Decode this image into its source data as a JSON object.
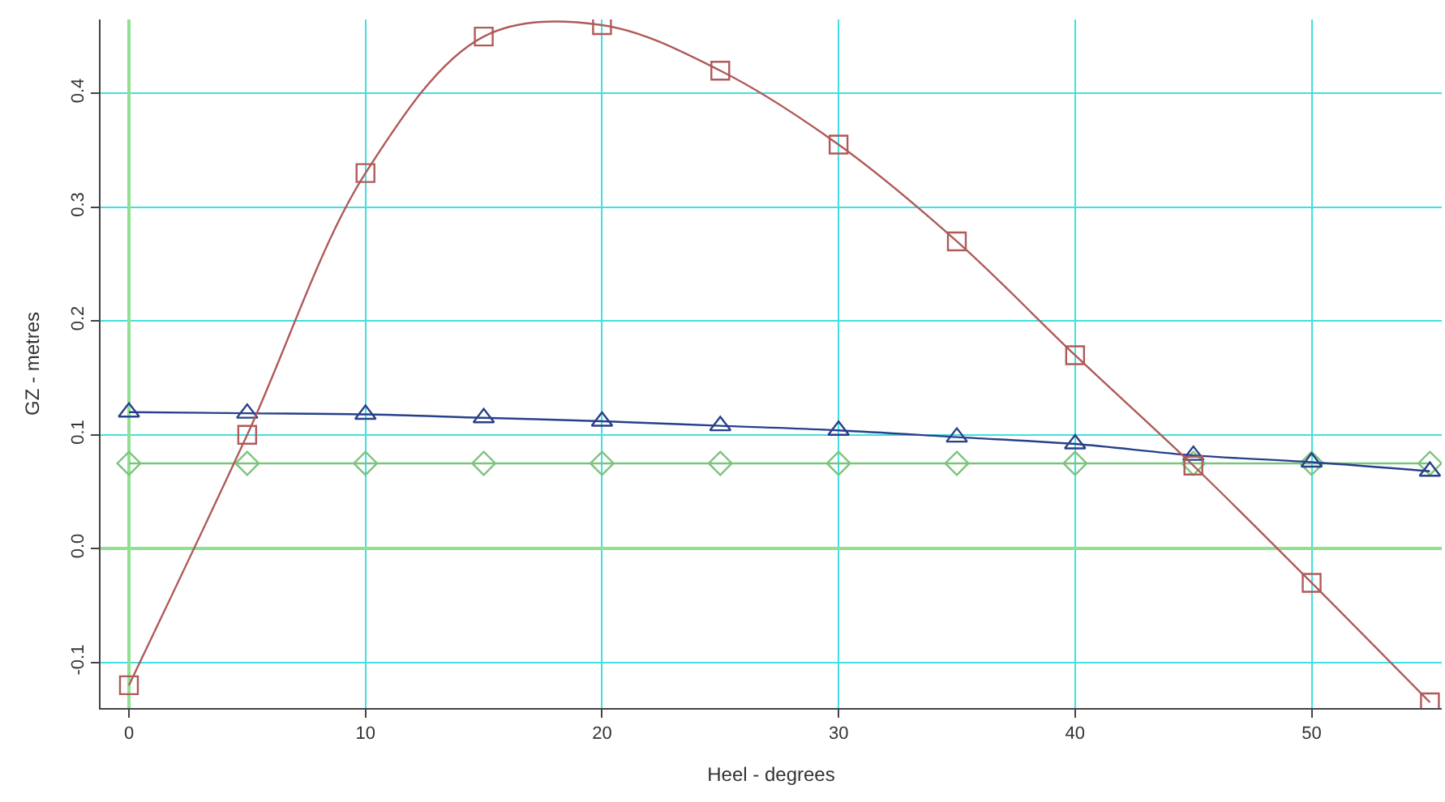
{
  "chart_data": {
    "type": "line",
    "xlabel": "Heel - degrees",
    "ylabel": "GZ - metres",
    "x": [
      0,
      5,
      10,
      15,
      20,
      25,
      30,
      35,
      40,
      45,
      50,
      55
    ],
    "series": [
      {
        "color": "#b05a5a",
        "marker": "square",
        "values": [
          -0.12,
          0.1,
          0.33,
          0.45,
          0.46,
          0.42,
          0.355,
          0.27,
          0.17,
          0.073,
          -0.03,
          -0.135
        ]
      },
      {
        "color": "#27408b",
        "marker": "triangle",
        "values": [
          0.12,
          0.119,
          0.118,
          0.115,
          0.112,
          0.108,
          0.104,
          0.098,
          0.092,
          0.082,
          0.076,
          0.068
        ]
      },
      {
        "color": "#7cc47c",
        "marker": "diamond",
        "values": [
          0.075,
          0.075,
          0.075,
          0.075,
          0.075,
          0.075,
          0.075,
          0.075,
          0.075,
          0.075,
          0.075,
          0.075
        ]
      }
    ],
    "xlim": [
      -1.2,
      55.5
    ],
    "ylim": [
      -0.14,
      0.465
    ],
    "xticks": [
      0,
      10,
      20,
      30,
      40,
      50
    ],
    "yticks": [
      {
        "value": -0.1,
        "label": "-0.1"
      },
      {
        "value": 0,
        "label": "0.0"
      },
      0.1,
      0.2,
      0.3,
      0.4
    ],
    "grid": true
  }
}
